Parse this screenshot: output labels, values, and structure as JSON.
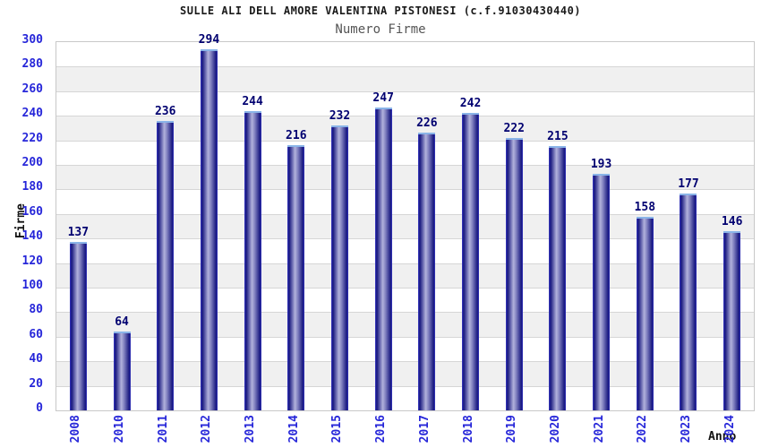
{
  "chart_data": {
    "type": "bar",
    "title": "SULLE ALI DELL AMORE VALENTINA PISTONESI (c.f.91030430440)",
    "subtitle": "Numero Firme",
    "xlabel": "Anno",
    "ylabel": "Firme",
    "categories": [
      "2008",
      "2010",
      "2011",
      "2012",
      "2013",
      "2014",
      "2015",
      "2016",
      "2017",
      "2018",
      "2019",
      "2020",
      "2021",
      "2022",
      "2023",
      "2024"
    ],
    "values": [
      137,
      64,
      236,
      294,
      244,
      216,
      232,
      247,
      226,
      242,
      222,
      215,
      193,
      158,
      177,
      146
    ],
    "ylim": [
      0,
      300
    ],
    "ytick_step": 20,
    "yticks": [
      0,
      20,
      40,
      60,
      80,
      100,
      120,
      140,
      160,
      180,
      200,
      220,
      240,
      260,
      280,
      300
    ],
    "legend": "none",
    "grid": "horizontal-lines-with-alternating-bands"
  },
  "colors": {
    "bar_edge": "#16167e",
    "bar_edge_highlight": "#3a3ac4",
    "bar_center": "#b2b2dc",
    "bar_mid": "#8585c2",
    "bar_cap": "#8ab4e8",
    "axis_tick_text": "#2626d9",
    "value_label": "#000070",
    "band": "#f0f0f0",
    "grid_line": "#d6d6d6",
    "plot_border": "#c8c8c8",
    "title_text": "#1a1a1a",
    "subtitle_text": "#555555",
    "axis_name_text": "#111111",
    "background": "#ffffff"
  }
}
